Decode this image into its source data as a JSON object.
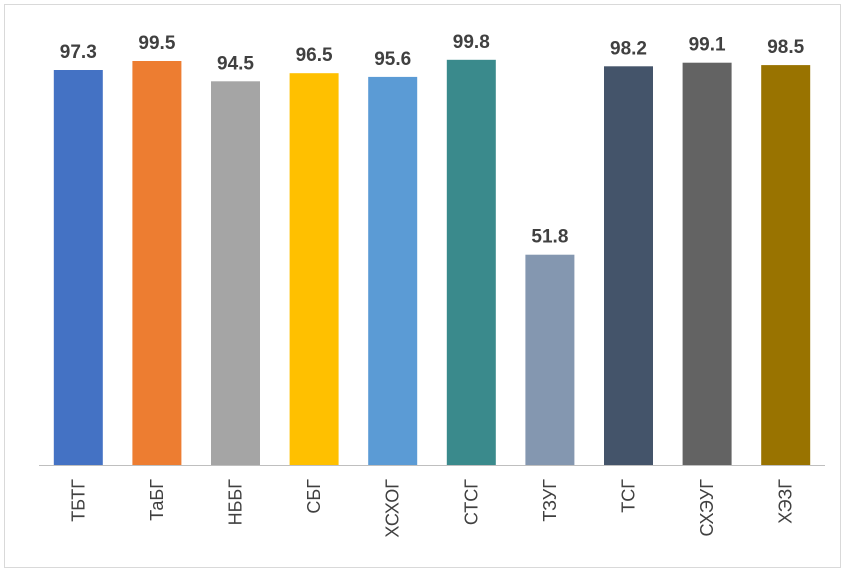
{
  "chart_data": {
    "type": "bar",
    "title": "",
    "xlabel": "",
    "ylabel": "",
    "ylim": [
      0,
      100
    ],
    "grid": false,
    "legend": "none",
    "categories": [
      "ТБТГ",
      "ТаБГ",
      "НББГ",
      "СБГ",
      "ХСХОГ",
      "СТСГ",
      "ТЗУГ",
      "ТСГ",
      "СХЭУГ",
      "ХЭЗГ"
    ],
    "values": [
      97.3,
      99.5,
      94.5,
      96.5,
      95.6,
      99.8,
      51.8,
      98.2,
      99.1,
      98.5
    ],
    "value_labels": [
      "97.3",
      "99.5",
      "94.5",
      "96.5",
      "95.6",
      "99.8",
      "51.8",
      "98.2",
      "99.1",
      "98.5"
    ],
    "colors": [
      "#4472c4",
      "#ed7d31",
      "#a5a5a5",
      "#ffc000",
      "#5b9bd5",
      "#3a8a8c",
      "#8497b0",
      "#44546a",
      "#636363",
      "#997300"
    ],
    "axis_color": "#bfbfbf",
    "label_color": "#404040"
  }
}
